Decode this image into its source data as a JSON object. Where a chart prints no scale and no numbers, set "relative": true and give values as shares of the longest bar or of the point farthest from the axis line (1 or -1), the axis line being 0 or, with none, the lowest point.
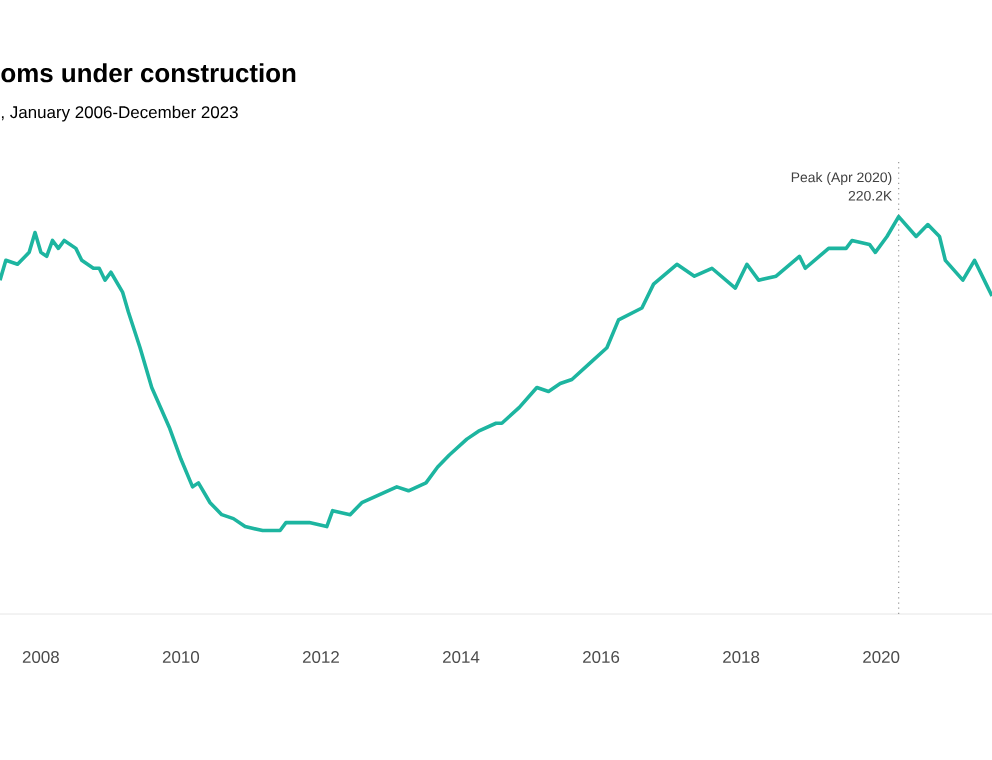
{
  "chart_data": {
    "type": "line",
    "title": "oms under construction",
    "subtitle": ", January 2006-December 2023",
    "relative": true,
    "x": [
      "2007-06",
      "2007-07",
      "2007-09",
      "2007-11",
      "2007-12",
      "2008-01",
      "2008-02",
      "2008-03",
      "2008-04",
      "2008-05",
      "2008-07",
      "2008-08",
      "2008-10",
      "2008-11",
      "2008-12",
      "2009-01",
      "2009-03",
      "2009-04",
      "2009-06",
      "2009-08",
      "2009-11",
      "2010-01",
      "2010-03",
      "2010-04",
      "2010-06",
      "2010-08",
      "2010-10",
      "2010-12",
      "2011-03",
      "2011-06",
      "2011-07",
      "2011-11",
      "2012-02",
      "2012-03",
      "2012-06",
      "2012-08",
      "2012-11",
      "2013-02",
      "2013-04",
      "2013-07",
      "2013-09",
      "2013-11",
      "2014-02",
      "2014-04",
      "2014-07",
      "2014-08",
      "2014-11",
      "2015-02",
      "2015-04",
      "2015-06",
      "2015-08",
      "2015-11",
      "2016-02",
      "2016-04",
      "2016-08",
      "2016-10",
      "2017-02",
      "2017-05",
      "2017-08",
      "2017-12",
      "2018-02",
      "2018-04",
      "2018-07",
      "2018-11",
      "2018-12",
      "2019-04",
      "2019-07",
      "2019-08",
      "2019-11",
      "2019-12",
      "2020-02",
      "2020-04",
      "2020-07",
      "2020-09",
      "2020-11",
      "2020-12",
      "2021-03",
      "2021-05",
      "2021-07",
      "2021-08"
    ],
    "series": [
      {
        "color": "#1db5a0",
        "values": [
          0.84,
          0.89,
          0.88,
          0.91,
          0.96,
          0.91,
          0.9,
          0.94,
          0.92,
          0.94,
          0.92,
          0.89,
          0.87,
          0.87,
          0.84,
          0.86,
          0.81,
          0.76,
          0.67,
          0.57,
          0.47,
          0.39,
          0.32,
          0.33,
          0.28,
          0.25,
          0.24,
          0.22,
          0.21,
          0.21,
          0.23,
          0.23,
          0.22,
          0.26,
          0.25,
          0.28,
          0.3,
          0.32,
          0.31,
          0.33,
          0.37,
          0.4,
          0.44,
          0.46,
          0.48,
          0.48,
          0.52,
          0.57,
          0.56,
          0.58,
          0.59,
          0.63,
          0.67,
          0.74,
          0.77,
          0.83,
          0.88,
          0.85,
          0.87,
          0.82,
          0.88,
          0.84,
          0.85,
          0.9,
          0.87,
          0.92,
          0.92,
          0.94,
          0.93,
          0.91,
          0.95,
          1,
          0.95,
          0.98,
          0.95,
          0.89,
          0.84,
          0.89,
          0.83,
          0.8
        ]
      }
    ],
    "xlim": [
      "2007-06",
      "2021-08"
    ],
    "xticks": [
      "2008",
      "2010",
      "2012",
      "2014",
      "2016",
      "2018",
      "2020"
    ],
    "ref_lines": [
      {
        "axis": "x",
        "value": "2020-04",
        "label": "Peak (Apr 2020)",
        "color": "#999999",
        "line_style": "dotted"
      }
    ],
    "annotations": [
      {
        "text": "220.2K",
        "x": "2020-04",
        "y": 1
      }
    ]
  }
}
